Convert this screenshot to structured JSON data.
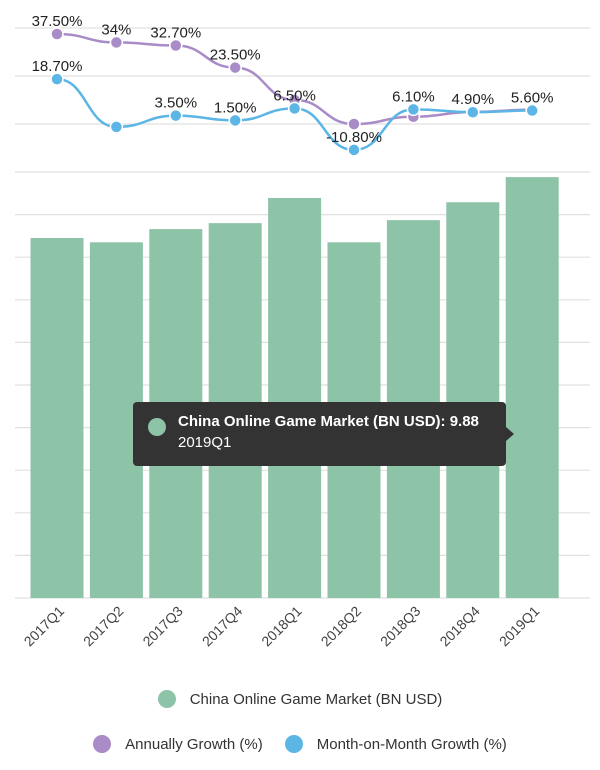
{
  "chart_data": {
    "type": "bar+line",
    "categories": [
      "2017Q1",
      "2017Q2",
      "2017Q3",
      "2017Q4",
      "2018Q1",
      "2018Q2",
      "2018Q3",
      "2018Q4",
      "2019Q1"
    ],
    "bar_series": {
      "name": "China Online Game Market (BN USD)",
      "values": [
        8.45,
        8.35,
        8.66,
        8.8,
        9.39,
        8.35,
        8.87,
        9.29,
        9.88
      ],
      "ylim": [
        0,
        10
      ]
    },
    "line_series": [
      {
        "name": "Annually Growth (%)",
        "values": [
          37.5,
          34,
          32.7,
          23.5,
          10,
          0,
          3,
          5,
          6
        ],
        "labels": [
          "37.50%",
          "34%",
          "32.70%",
          "23.50%",
          "",
          "",
          "",
          "",
          ""
        ]
      },
      {
        "name": "Month-on-Month Growth (%)",
        "values": [
          18.7,
          -1.2,
          3.5,
          1.5,
          6.5,
          -10.8,
          6.1,
          4.9,
          5.6
        ],
        "labels": [
          "18.70%",
          "",
          "3.50%",
          "1.50%",
          "6.50%",
          "-10.80%",
          "6.10%",
          "4.90%",
          "5.60%"
        ]
      }
    ],
    "line_ylim": [
      -20,
      40
    ],
    "grid": true,
    "legend_position": "bottom"
  },
  "tooltip": {
    "title": "China Online Game Market (BN USD): 9.88",
    "subtitle": "2019Q1"
  },
  "legend": [
    "China Online Game Market (BN USD)",
    "Annually Growth (%)",
    "Month-on-Month Growth (%)"
  ],
  "colors": {
    "bar": "#8dc3a7",
    "annual": "#a98bc8",
    "mom": "#5bb6e6",
    "grid": "#e0e0e0",
    "tooltip": "#333333"
  }
}
